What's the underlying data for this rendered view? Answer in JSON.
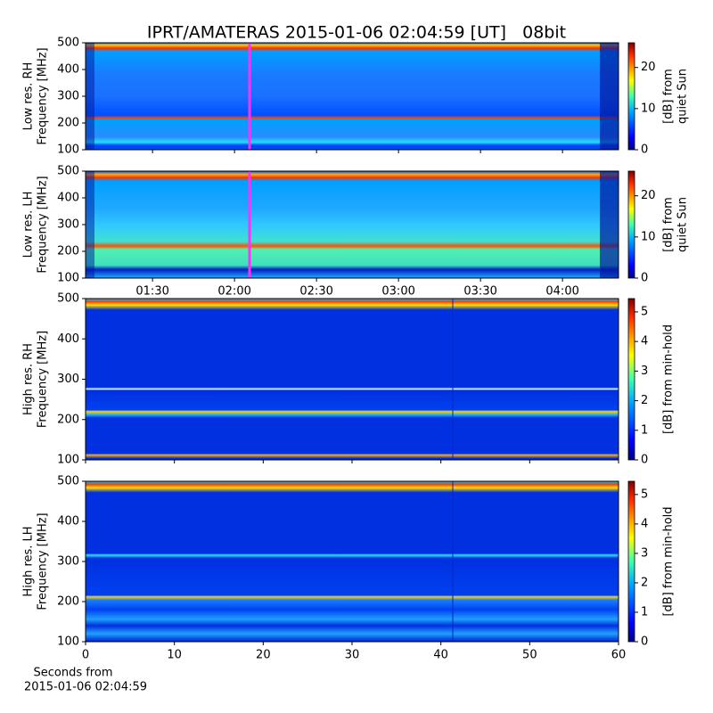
{
  "title": "IPRT/AMATERAS 2015-01-06 02:04:59 [UT]   08bit",
  "x_caption": [
    "Seconds from",
    "2015-01-06 02:04:59"
  ],
  "chart_data": [
    {
      "type": "heatmap",
      "ylabel": [
        "Low res. RH",
        "Frequency [MHz]"
      ],
      "ylim": [
        100,
        500
      ],
      "yticks": [
        100,
        200,
        300,
        400,
        500
      ],
      "colorbar": {
        "label": [
          "[dB] from",
          "quiet Sun"
        ],
        "lim": [
          0,
          26
        ],
        "ticks": [
          0,
          10,
          20
        ]
      }
    },
    {
      "type": "heatmap",
      "ylabel": [
        "Low res. LH",
        "Frequency [MHz]"
      ],
      "ylim": [
        100,
        500
      ],
      "yticks": [
        100,
        200,
        300,
        400,
        500
      ],
      "xlim": [
        65.5,
        260.5
      ],
      "xticks": [
        {
          "value": 90,
          "label": "01:30"
        },
        {
          "value": 120,
          "label": "02:00"
        },
        {
          "value": 150,
          "label": "02:30"
        },
        {
          "value": 180,
          "label": "03:00"
        },
        {
          "value": 210,
          "label": "03:30"
        },
        {
          "value": 240,
          "label": "04:00"
        }
      ],
      "colorbar": {
        "label": [
          "[dB] from",
          "quiet Sun"
        ],
        "lim": [
          0,
          26
        ],
        "ticks": [
          0,
          10,
          20
        ]
      }
    },
    {
      "type": "heatmap",
      "ylabel": [
        "High res. RH",
        "Frequency [MHz]"
      ],
      "ylim": [
        100,
        500
      ],
      "yticks": [
        100,
        200,
        300,
        400,
        500
      ],
      "colorbar": {
        "label": [
          "[dB] from min-hold"
        ],
        "lim": [
          0,
          5.45
        ],
        "ticks": [
          0,
          1,
          2,
          3,
          4,
          5
        ]
      }
    },
    {
      "type": "heatmap",
      "ylabel": [
        "High res. LH",
        "Frequency [MHz]"
      ],
      "ylim": [
        100,
        500
      ],
      "yticks": [
        100,
        200,
        300,
        400,
        500
      ],
      "xlim": [
        0,
        60
      ],
      "xticks": [
        0,
        10,
        20,
        30,
        40,
        50,
        60
      ],
      "colorbar": {
        "label": [
          "[dB] from min-hold"
        ],
        "lim": [
          0,
          5.45
        ],
        "ticks": [
          0,
          1,
          2,
          3,
          4,
          5
        ]
      }
    }
  ]
}
